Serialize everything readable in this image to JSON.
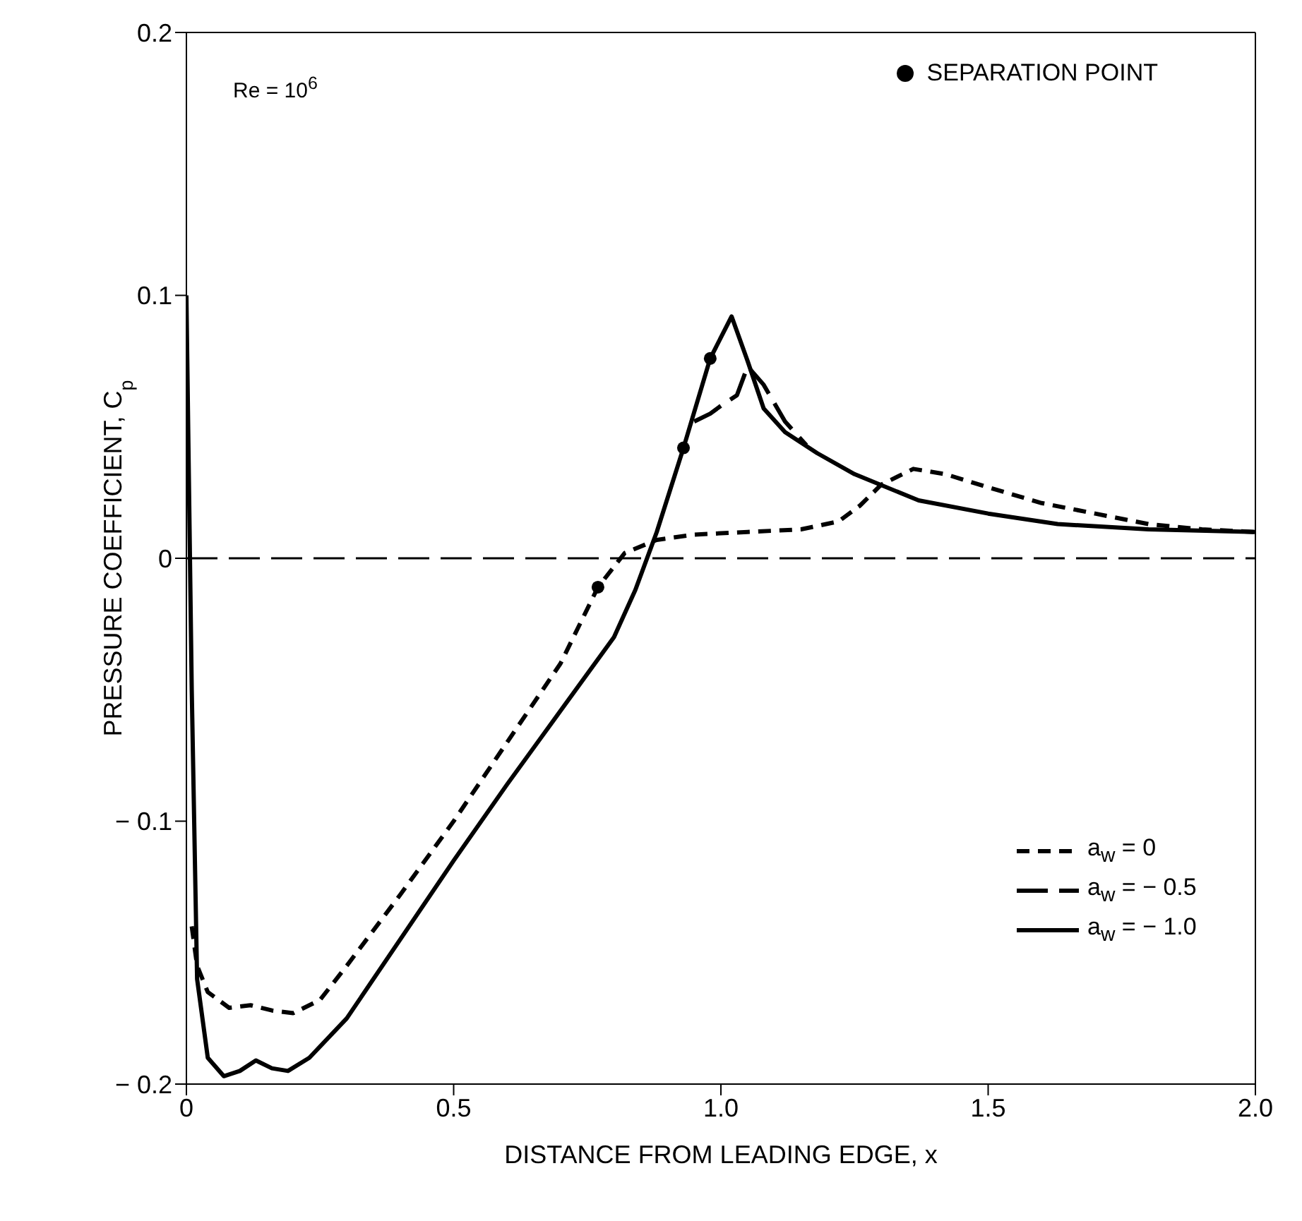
{
  "chart_data": {
    "type": "line",
    "xlabel": "DISTANCE FROM LEADING EDGE, x",
    "ylabel": "PRESSURE COEFFICIENT, C$_{p}$",
    "annotations": [
      "Re = 10$^{6}$"
    ],
    "xlim": [
      0,
      2
    ],
    "ylim": [
      -0.2,
      0.2
    ],
    "xticks": [
      0,
      0.5,
      {
        "value": 1,
        "label": "1.0"
      },
      1.5,
      {
        "value": 2,
        "label": "2.0"
      }
    ],
    "yticks": [
      {
        "value": -0.2,
        "label": "− 0.2"
      },
      {
        "value": -0.1,
        "label": "− 0.1"
      },
      0,
      0.1,
      0.2
    ],
    "ref_lines": [
      {
        "axis": "y",
        "value": 0,
        "color": "#000000",
        "line_style": "dashed"
      }
    ],
    "legend": "right",
    "series": [
      {
        "name": "a$_{w}$ = 0",
        "color": "#000000",
        "line_style": "dashed",
        "marker": "none",
        "x": [
          0.01,
          0.02,
          0.04,
          0.08,
          0.12,
          0.16,
          0.2,
          0.25,
          0.3,
          0.4,
          0.5,
          0.6,
          0.7,
          0.77,
          0.82,
          0.88,
          0.95,
          1.05,
          1.15,
          1.22,
          1.26,
          1.3,
          1.36,
          1.42,
          1.5,
          1.6,
          1.7,
          1.8,
          1.9,
          2.0
        ],
        "values": [
          -0.14,
          -0.155,
          -0.165,
          -0.171,
          -0.17,
          -0.172,
          -0.173,
          -0.168,
          -0.155,
          -0.128,
          -0.1,
          -0.07,
          -0.04,
          -0.011,
          0.002,
          0.007,
          0.009,
          0.01,
          0.011,
          0.014,
          0.02,
          0.028,
          0.034,
          0.032,
          0.027,
          0.021,
          0.017,
          0.013,
          0.011,
          0.01
        ]
      },
      {
        "name": "a$_{w}$ = − 0.5",
        "color": "#000000",
        "line_style": "dashed",
        "marker": "none",
        "x": [
          0.95,
          0.98,
          1.0,
          1.03,
          1.05,
          1.08,
          1.12,
          1.16
        ],
        "values": [
          0.052,
          0.055,
          0.058,
          0.062,
          0.073,
          0.066,
          0.052,
          0.043
        ]
      },
      {
        "name": "a$_{w}$ = − 1.0",
        "color": "#000000",
        "line_style": "solid",
        "marker": "none",
        "x": [
          0,
          0.01,
          0.02,
          0.04,
          0.07,
          0.1,
          0.13,
          0.16,
          0.19,
          0.23,
          0.3,
          0.4,
          0.5,
          0.6,
          0.7,
          0.8,
          0.84,
          0.88,
          0.93,
          0.98,
          1.02,
          1.05,
          1.08,
          1.12,
          1.18,
          1.25,
          1.37,
          1.5,
          1.63,
          1.8,
          2.0
        ],
        "values": [
          0.1,
          -0.05,
          -0.16,
          -0.19,
          -0.197,
          -0.195,
          -0.191,
          -0.194,
          -0.195,
          -0.19,
          -0.175,
          -0.145,
          -0.115,
          -0.086,
          -0.058,
          -0.03,
          -0.012,
          0.01,
          0.042,
          0.076,
          0.092,
          0.075,
          0.057,
          0.048,
          0.04,
          0.032,
          0.022,
          0.017,
          0.013,
          0.011,
          0.01
        ]
      },
      {
        "name": "SEPARATION POINT",
        "type": "scatter",
        "color": "#000000",
        "marker": "circle",
        "x": [
          0.77,
          0.93,
          0.98
        ],
        "values": [
          -0.011,
          0.042,
          0.076
        ]
      }
    ]
  }
}
